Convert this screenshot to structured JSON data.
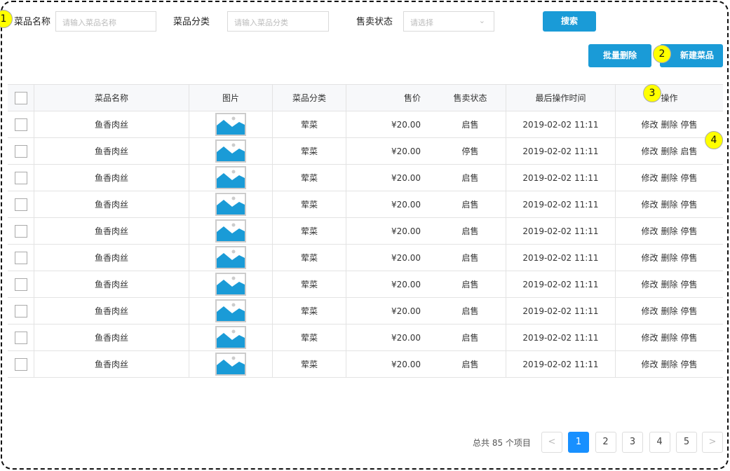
{
  "filters": {
    "name_label": "菜品名称",
    "name_placeholder": "请输入菜品名称",
    "category_label": "菜品分类",
    "category_placeholder": "请输入菜品分类",
    "status_label": "售卖状态",
    "status_placeholder": "请选择",
    "search": "搜索"
  },
  "toolbar": {
    "batch_delete": "批量删除",
    "new_dish": "新建菜品"
  },
  "table": {
    "headers": [
      "菜品名称",
      "图片",
      "菜品分类",
      "售价",
      "售卖状态",
      "最后操作时间",
      "操作"
    ],
    "rows": [
      {
        "name": "鱼香肉丝",
        "category": "荤菜",
        "price": "¥20.00",
        "status": "启售",
        "time": "2019-02-02 11:11",
        "actions": [
          "修改",
          "删除",
          "停售"
        ]
      },
      {
        "name": "鱼香肉丝",
        "category": "荤菜",
        "price": "¥20.00",
        "status": "停售",
        "time": "2019-02-02 11:11",
        "actions": [
          "修改",
          "删除",
          "启售"
        ]
      },
      {
        "name": "鱼香肉丝",
        "category": "荤菜",
        "price": "¥20.00",
        "status": "启售",
        "time": "2019-02-02 11:11",
        "actions": [
          "修改",
          "删除",
          "停售"
        ]
      },
      {
        "name": "鱼香肉丝",
        "category": "荤菜",
        "price": "¥20.00",
        "status": "启售",
        "time": "2019-02-02 11:11",
        "actions": [
          "修改",
          "删除",
          "停售"
        ]
      },
      {
        "name": "鱼香肉丝",
        "category": "荤菜",
        "price": "¥20.00",
        "status": "启售",
        "time": "2019-02-02 11:11",
        "actions": [
          "修改",
          "删除",
          "停售"
        ]
      },
      {
        "name": "鱼香肉丝",
        "category": "荤菜",
        "price": "¥20.00",
        "status": "启售",
        "time": "2019-02-02 11:11",
        "actions": [
          "修改",
          "删除",
          "停售"
        ]
      },
      {
        "name": "鱼香肉丝",
        "category": "荤菜",
        "price": "¥20.00",
        "status": "启售",
        "time": "2019-02-02 11:11",
        "actions": [
          "修改",
          "删除",
          "停售"
        ]
      },
      {
        "name": "鱼香肉丝",
        "category": "荤菜",
        "price": "¥20.00",
        "status": "启售",
        "time": "2019-02-02 11:11",
        "actions": [
          "修改",
          "删除",
          "停售"
        ]
      },
      {
        "name": "鱼香肉丝",
        "category": "荤菜",
        "price": "¥20.00",
        "status": "启售",
        "time": "2019-02-02 11:11",
        "actions": [
          "修改",
          "删除",
          "停售"
        ]
      },
      {
        "name": "鱼香肉丝",
        "category": "荤菜",
        "price": "¥20.00",
        "status": "启售",
        "time": "2019-02-02 11:11",
        "actions": [
          "修改",
          "删除",
          "停售"
        ]
      }
    ]
  },
  "pagination": {
    "total": "总共 85 个项目",
    "pages": [
      "1",
      "2",
      "3",
      "4",
      "5"
    ],
    "current": "1",
    "prev": "<",
    "next": ">"
  },
  "annotations": [
    "1",
    "2",
    "3",
    "4"
  ],
  "colors": {
    "primary": "#1a9bd7",
    "page_active": "#1890ff",
    "image_icon": "#1a9bd7",
    "annotation": "#ffff00"
  }
}
